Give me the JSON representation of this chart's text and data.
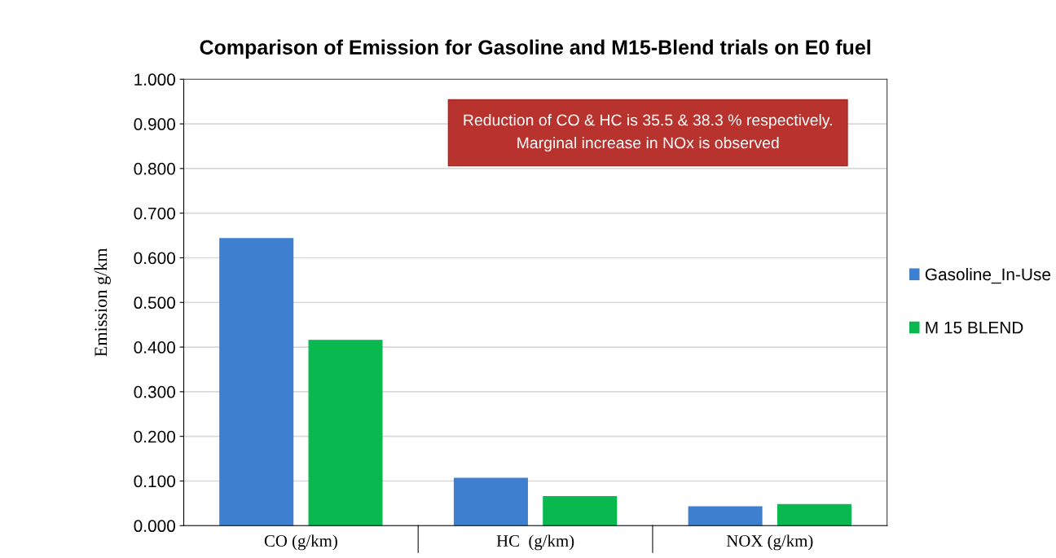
{
  "chart_data": {
    "type": "bar",
    "title": "Comparison of Emission for Gasoline and M15-Blend trials on E0 fuel",
    "ylabel": "Emission g/km",
    "categories": [
      "CO (g/km)",
      "HC  (g/km)",
      "NOX (g/km)"
    ],
    "series": [
      {
        "name": "Gasoline_In-Use",
        "color": "#3f7fcf",
        "values": [
          0.643,
          0.106,
          0.042
        ]
      },
      {
        "name": "M 15 BLEND",
        "color": "#0ab850",
        "values": [
          0.415,
          0.065,
          0.047
        ]
      }
    ],
    "ylim": [
      0,
      1
    ],
    "yticks": [
      {
        "value": 0,
        "label": "0.000"
      },
      {
        "value": 0.1,
        "label": "0.100"
      },
      {
        "value": 0.2,
        "label": "0.200"
      },
      {
        "value": 0.3,
        "label": "0.300"
      },
      {
        "value": 0.4,
        "label": "0.400"
      },
      {
        "value": 0.5,
        "label": "0.500"
      },
      {
        "value": 0.6,
        "label": "0.600"
      },
      {
        "value": 0.7,
        "label": "0.700"
      },
      {
        "value": 0.8,
        "label": "0.800"
      },
      {
        "value": 0.9,
        "label": "0.900"
      },
      {
        "value": 1,
        "label": "1.000"
      }
    ],
    "grid": "y",
    "legend": "right",
    "annotations": [
      "Reduction of CO & HC is 35.5 & 38.3 % respectively.\nMarginal increase in NOx is observed"
    ]
  }
}
